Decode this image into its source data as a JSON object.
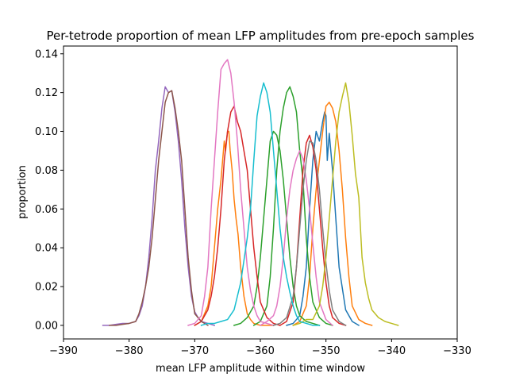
{
  "chart_data": {
    "type": "line",
    "title": "Per-tetrode proportion of mean LFP amplitudes from pre-epoch samples",
    "xlabel": "mean LFP amplitude within time window",
    "ylabel": "proportion",
    "xlim": [
      -390,
      -330
    ],
    "ylim": [
      -0.007,
      0.144
    ],
    "xticks": [
      -390,
      -380,
      -370,
      -360,
      -350,
      -340,
      -330
    ],
    "yticks": [
      0.0,
      0.02,
      0.04,
      0.06,
      0.08,
      0.1,
      0.12,
      0.14
    ],
    "xtick_labels": [
      "−390",
      "−380",
      "−370",
      "−360",
      "−350",
      "−340",
      "−330"
    ],
    "ytick_labels": [
      "0.00",
      "0.02",
      "0.04",
      "0.06",
      "0.08",
      "0.10",
      "0.12",
      "0.14"
    ],
    "grid": false,
    "legend": "none",
    "series": [
      {
        "color": "#1f77b4",
        "x": [
          -356,
          -355,
          -354,
          -353.5,
          -353,
          -352.5,
          -352,
          -351.5,
          -351,
          -350.5,
          -350.2,
          -350,
          -349.8,
          -349.5,
          -349,
          -348.5,
          -348,
          -347,
          -346,
          -345
        ],
        "y": [
          0,
          0.001,
          0.005,
          0.015,
          0.03,
          0.06,
          0.085,
          0.1,
          0.095,
          0.105,
          0.11,
          0.108,
          0.085,
          0.099,
          0.08,
          0.055,
          0.03,
          0.008,
          0.002,
          0
        ]
      },
      {
        "color": "#ff7f0e",
        "x": [
          -355,
          -354,
          -353,
          -352.5,
          -352,
          -351.5,
          -351,
          -350.5,
          -350,
          -349.5,
          -349,
          -348.5,
          -348,
          -347.5,
          -347,
          -346.5,
          -346,
          -345,
          -344,
          -343
        ],
        "y": [
          0,
          0.002,
          0.01,
          0.025,
          0.05,
          0.07,
          0.085,
          0.1,
          0.113,
          0.115,
          0.112,
          0.105,
          0.09,
          0.07,
          0.045,
          0.025,
          0.01,
          0.003,
          0.001,
          0
        ]
      },
      {
        "color": "#ff7f0e",
        "x": [
          -370,
          -369,
          -368,
          -367.5,
          -367,
          -366.5,
          -366,
          -365.5,
          -365.3,
          -365,
          -364.8,
          -364.6,
          -364.3,
          -364,
          -363.7,
          -363.4,
          -363,
          -362.5,
          -362,
          -361.5,
          -361,
          -360,
          -359,
          -358
        ],
        "y": [
          0,
          0.002,
          0.01,
          0.02,
          0.04,
          0.06,
          0.075,
          0.095,
          0.09,
          0.1,
          0.1,
          0.09,
          0.08,
          0.065,
          0.055,
          0.047,
          0.03,
          0.015,
          0.006,
          0.003,
          0.001,
          0,
          0,
          0
        ]
      },
      {
        "color": "#2ca02c",
        "x": [
          -361,
          -360,
          -359,
          -358.5,
          -358,
          -357.5,
          -357,
          -356.5,
          -356,
          -355.5,
          -355,
          -354.5,
          -354,
          -353.5,
          -353,
          -352.5,
          -352,
          -351,
          -350,
          -349
        ],
        "y": [
          0,
          0.002,
          0.01,
          0.025,
          0.05,
          0.08,
          0.1,
          0.112,
          0.12,
          0.123,
          0.118,
          0.11,
          0.09,
          0.075,
          0.045,
          0.025,
          0.012,
          0.004,
          0.001,
          0
        ]
      },
      {
        "color": "#2ca02c",
        "x": [
          -364,
          -363,
          -362,
          -361,
          -360.5,
          -360,
          -359.5,
          -359,
          -358.5,
          -358,
          -357.5,
          -357,
          -356.5,
          -356,
          -355.5,
          -355,
          -354.5,
          -354,
          -353,
          -352,
          -351
        ],
        "y": [
          0,
          0.001,
          0.004,
          0.01,
          0.02,
          0.035,
          0.055,
          0.075,
          0.095,
          0.1,
          0.098,
          0.09,
          0.075,
          0.055,
          0.035,
          0.02,
          0.01,
          0.005,
          0.002,
          0.001,
          0
        ]
      },
      {
        "color": "#d62728",
        "x": [
          -370,
          -369,
          -368,
          -367.5,
          -367,
          -366.5,
          -366,
          -365.5,
          -365,
          -364.5,
          -364,
          -363.5,
          -363,
          -362.5,
          -362,
          -361.5,
          -361,
          -360.5,
          -360,
          -359,
          -358,
          -357
        ],
        "y": [
          0,
          0.002,
          0.008,
          0.015,
          0.025,
          0.04,
          0.06,
          0.085,
          0.1,
          0.11,
          0.113,
          0.105,
          0.1,
          0.09,
          0.08,
          0.06,
          0.04,
          0.025,
          0.012,
          0.004,
          0.001,
          0
        ]
      },
      {
        "color": "#d62728",
        "x": [
          -357,
          -356,
          -355,
          -354.5,
          -354,
          -353.5,
          -353,
          -352.5,
          -352,
          -351.5,
          -351,
          -350.5,
          -350,
          -349.5,
          -349,
          -348,
          -347
        ],
        "y": [
          0,
          0.002,
          0.012,
          0.03,
          0.055,
          0.08,
          0.094,
          0.098,
          0.092,
          0.08,
          0.06,
          0.04,
          0.022,
          0.01,
          0.004,
          0.001,
          0
        ]
      },
      {
        "color": "#9467bd",
        "x": [
          -384,
          -383,
          -382,
          -381,
          -380,
          -379,
          -378.5,
          -378,
          -377.5,
          -377,
          -376.5,
          -376,
          -375.5,
          -375,
          -374.5,
          -374,
          -373.5,
          -373,
          -372.5,
          -372,
          -371.5,
          -371,
          -370.5,
          -370,
          -369.5,
          -369,
          -368,
          -367
        ],
        "y": [
          0,
          0,
          0.0005,
          0.001,
          0.001,
          0.002,
          0.005,
          0.01,
          0.02,
          0.035,
          0.055,
          0.08,
          0.095,
          0.112,
          0.123,
          0.12,
          0.121,
          0.11,
          0.095,
          0.075,
          0.05,
          0.03,
          0.015,
          0.007,
          0.004,
          0.002,
          0.001,
          0
        ]
      },
      {
        "color": "#8c564b",
        "x": [
          -383,
          -382,
          -381,
          -380,
          -379,
          -378.5,
          -378,
          -377.5,
          -377,
          -376.5,
          -376,
          -375.5,
          -375,
          -374.5,
          -374,
          -373.5,
          -373,
          -372.5,
          -372,
          -371.5,
          -371,
          -370.5,
          -370,
          -369,
          -368
        ],
        "y": [
          0,
          0,
          0.0005,
          0.001,
          0.002,
          0.006,
          0.012,
          0.02,
          0.03,
          0.045,
          0.065,
          0.085,
          0.1,
          0.115,
          0.12,
          0.121,
          0.112,
          0.1,
          0.085,
          0.06,
          0.035,
          0.018,
          0.006,
          0.002,
          0
        ]
      },
      {
        "color": "#e377c2",
        "x": [
          -371,
          -370,
          -369,
          -368.5,
          -368,
          -367.5,
          -367,
          -366.5,
          -366,
          -365.5,
          -365,
          -364.5,
          -364,
          -363.5,
          -363,
          -362.5,
          -362,
          -361.5,
          -361,
          -360.5,
          -360,
          -359,
          -358
        ],
        "y": [
          0,
          0.001,
          0.005,
          0.015,
          0.03,
          0.06,
          0.085,
          0.11,
          0.132,
          0.135,
          0.137,
          0.13,
          0.115,
          0.095,
          0.07,
          0.05,
          0.03,
          0.018,
          0.01,
          0.005,
          0.002,
          0.001,
          0
        ]
      },
      {
        "color": "#e377c2",
        "x": [
          -360,
          -359,
          -358,
          -357.5,
          -357,
          -356.5,
          -356,
          -355.5,
          -355,
          -354.5,
          -354,
          -353.5,
          -353,
          -352.5,
          -352,
          -351.5,
          -351,
          -350,
          -349
        ],
        "y": [
          0,
          0.002,
          0.005,
          0.01,
          0.02,
          0.035,
          0.055,
          0.07,
          0.08,
          0.086,
          0.09,
          0.086,
          0.075,
          0.06,
          0.042,
          0.025,
          0.012,
          0.003,
          0
        ]
      },
      {
        "color": "#7f7f7f",
        "x": [
          -358,
          -357,
          -356,
          -355,
          -354.5,
          -354,
          -353.5,
          -353,
          -352.5,
          -352,
          -351.5,
          -351,
          -350.5,
          -350,
          -349.5,
          -349,
          -348,
          -347
        ],
        "y": [
          0,
          0.001,
          0.004,
          0.015,
          0.03,
          0.05,
          0.07,
          0.085,
          0.095,
          0.094,
          0.085,
          0.07,
          0.05,
          0.032,
          0.018,
          0.008,
          0.002,
          0
        ]
      },
      {
        "color": "#bcbd22",
        "x": [
          -355,
          -354,
          -353,
          -352,
          -351,
          -350.5,
          -350,
          -349.5,
          -349,
          -348.5,
          -348,
          -347.5,
          -347,
          -346.5,
          -346,
          -345.5,
          -345,
          -344.5,
          -344,
          -343.5,
          -343,
          -342,
          -341,
          -340,
          -339
        ],
        "y": [
          0,
          0.001,
          0.003,
          0.003,
          0.01,
          0.02,
          0.035,
          0.055,
          0.075,
          0.095,
          0.11,
          0.118,
          0.125,
          0.115,
          0.098,
          0.078,
          0.066,
          0.035,
          0.022,
          0.014,
          0.008,
          0.004,
          0.002,
          0.001,
          0
        ]
      },
      {
        "color": "#17becf",
        "x": [
          -369,
          -368,
          -367,
          -366,
          -365,
          -364,
          -363,
          -362,
          -361.5,
          -361,
          -360.5,
          -360,
          -359.5,
          -359,
          -358.5,
          -358,
          -357.5,
          -357,
          -356.5,
          -356,
          -355.5,
          -355,
          -354.5,
          -354,
          -353,
          -352,
          -351
        ],
        "y": [
          0,
          0.001,
          0.001,
          0.002,
          0.003,
          0.008,
          0.022,
          0.045,
          0.06,
          0.085,
          0.108,
          0.118,
          0.125,
          0.12,
          0.11,
          0.09,
          0.07,
          0.05,
          0.035,
          0.025,
          0.017,
          0.01,
          0.005,
          0.002,
          0.001,
          0,
          0
        ]
      }
    ]
  }
}
